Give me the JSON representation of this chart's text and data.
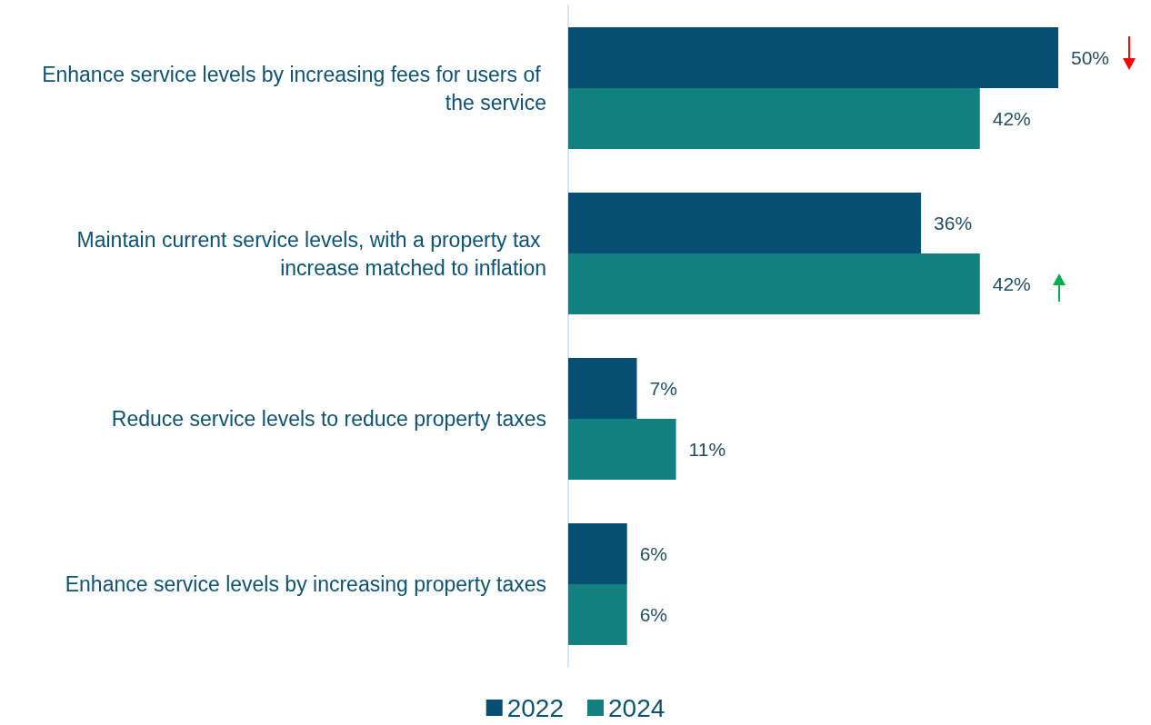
{
  "chart_data": {
    "type": "bar",
    "orientation": "horizontal",
    "categories": [
      "Enhance service levels by increasing fees for users of the service",
      "Maintain current service levels, with a property tax increase matched to inflation",
      "Reduce service levels to reduce property taxes",
      "Enhance service levels by increasing property taxes"
    ],
    "series": [
      {
        "name": "2022",
        "color": "#064f72",
        "values": [
          50,
          36,
          7,
          6
        ],
        "value_labels": [
          "50%",
          "36%",
          "7%",
          "6%"
        ]
      },
      {
        "name": "2024",
        "color": "#138080",
        "values": [
          42,
          42,
          11,
          6
        ],
        "value_labels": [
          "42%",
          "42%",
          "11%",
          "6%"
        ]
      }
    ],
    "legend": "bottom"
  }
}
